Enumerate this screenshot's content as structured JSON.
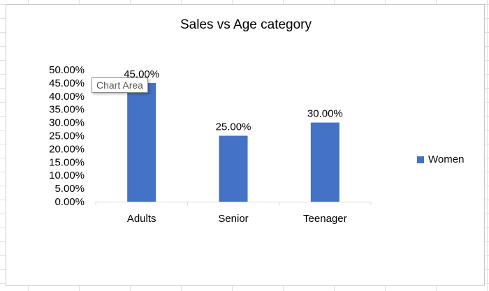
{
  "chart_data": {
    "type": "bar",
    "title": "Sales vs Age category",
    "categories": [
      "Adults",
      "Senior",
      "Teenager"
    ],
    "series": [
      {
        "name": "Women",
        "values": [
          0.45,
          0.25,
          0.3
        ],
        "color": "#4472c4"
      }
    ],
    "data_labels": [
      "45.00%",
      "25.00%",
      "30.00%"
    ],
    "y_ticks": [
      "0.00%",
      "5.00%",
      "10.00%",
      "15.00%",
      "20.00%",
      "25.00%",
      "30.00%",
      "35.00%",
      "40.00%",
      "45.00%",
      "50.00%"
    ],
    "ylim": [
      0,
      0.5
    ],
    "grid": false,
    "legend_position": "right"
  },
  "tooltip": {
    "text": "Chart Area"
  }
}
